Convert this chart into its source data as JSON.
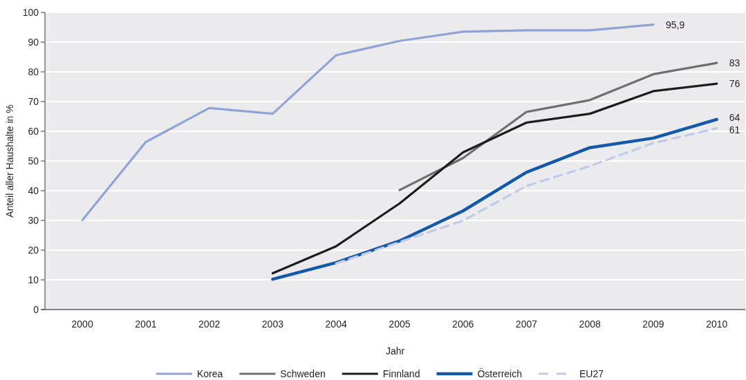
{
  "chart_data": {
    "type": "line",
    "xlabel": "Jahr",
    "ylabel": "Anteil aller Haushalte in %",
    "categories": [
      "2000",
      "2001",
      "2002",
      "2003",
      "2004",
      "2005",
      "2006",
      "2007",
      "2008",
      "2009",
      "2010"
    ],
    "ylim": [
      0,
      100
    ],
    "yticks": [
      0,
      10,
      20,
      30,
      40,
      50,
      60,
      70,
      80,
      90,
      100
    ],
    "grid": "y",
    "legend": "bottom",
    "line_style": "solid",
    "series": [
      {
        "name": "Korea",
        "color": "#8fa3d6",
        "values": [
          30.1,
          56.4,
          67.8,
          65.9,
          85.6,
          90.4,
          93.5,
          94,
          94,
          95.9,
          null
        ],
        "value_labels": [
          null,
          null,
          null,
          null,
          null,
          null,
          null,
          null,
          null,
          "95,9",
          null
        ]
      },
      {
        "name": "Schweden",
        "color": "#6e6e70",
        "values": [
          null,
          null,
          null,
          null,
          null,
          40.2,
          51,
          66.5,
          70.5,
          79.2,
          83
        ],
        "value_labels": [
          null,
          null,
          null,
          null,
          null,
          null,
          null,
          null,
          null,
          null,
          "83"
        ]
      },
      {
        "name": "Finnland",
        "color": "#1e1b1b",
        "values": [
          null,
          null,
          null,
          12.2,
          21.3,
          35.7,
          52.9,
          62.9,
          65.9,
          73.5,
          76
        ],
        "value_labels": [
          null,
          null,
          null,
          null,
          null,
          null,
          null,
          null,
          null,
          null,
          "76"
        ]
      },
      {
        "name": "Österreich",
        "color": "#1458a8",
        "values": [
          null,
          null,
          null,
          10.2,
          15.8,
          23.1,
          33.2,
          46.2,
          54.5,
          57.7,
          64
        ],
        "value_labels": [
          null,
          null,
          null,
          null,
          null,
          null,
          null,
          null,
          null,
          null,
          "64"
        ]
      },
      {
        "name": "EU27",
        "color": "#c2cae8",
        "line_style": "dashed",
        "values": [
          null,
          null,
          null,
          null,
          15.5,
          22.7,
          29.9,
          41.6,
          48.3,
          56,
          61
        ],
        "value_labels": [
          null,
          null,
          null,
          null,
          null,
          null,
          null,
          null,
          null,
          null,
          "61"
        ]
      }
    ]
  }
}
